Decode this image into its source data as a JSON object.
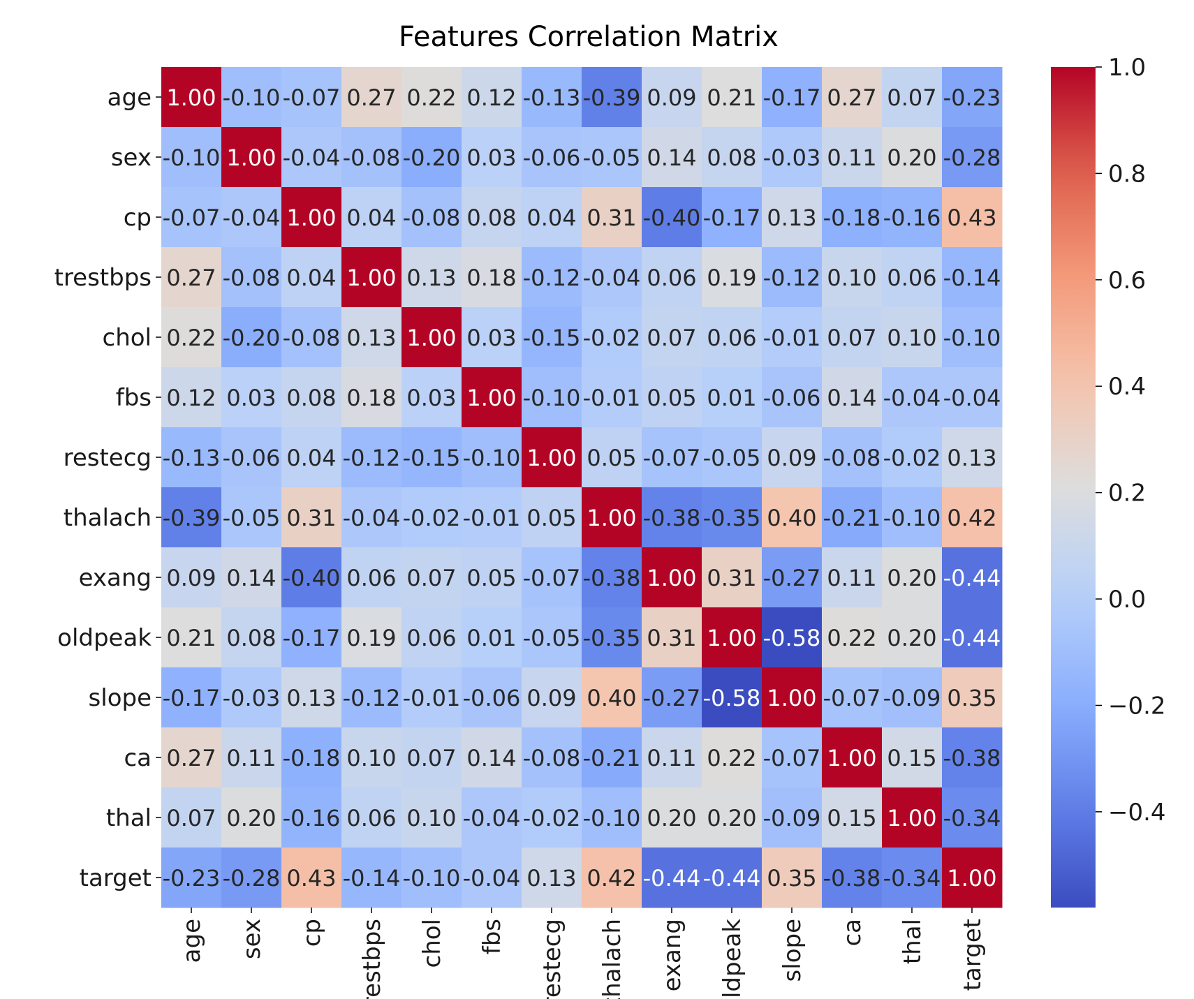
{
  "chart_data": {
    "type": "heatmap",
    "title": "Features Correlation Matrix",
    "xlabel": "",
    "ylabel": "",
    "colormap": "coolwarm",
    "vmin": -0.58,
    "vmax": 1.0,
    "annotation_format": "0.00",
    "labels": [
      "age",
      "sex",
      "cp",
      "trestbps",
      "chol",
      "fbs",
      "restecg",
      "thalach",
      "exang",
      "oldpeak",
      "slope",
      "ca",
      "thal",
      "target"
    ],
    "matrix": [
      [
        1.0,
        -0.1,
        -0.07,
        0.27,
        0.22,
        0.12,
        -0.13,
        -0.39,
        0.09,
        0.21,
        -0.17,
        0.27,
        0.07,
        -0.23
      ],
      [
        -0.1,
        1.0,
        -0.04,
        -0.08,
        -0.2,
        0.03,
        -0.06,
        -0.05,
        0.14,
        0.08,
        -0.03,
        0.11,
        0.2,
        -0.28
      ],
      [
        -0.07,
        -0.04,
        1.0,
        0.04,
        -0.08,
        0.08,
        0.04,
        0.31,
        -0.4,
        -0.17,
        0.13,
        -0.18,
        -0.16,
        0.43
      ],
      [
        0.27,
        -0.08,
        0.04,
        1.0,
        0.13,
        0.18,
        -0.12,
        -0.04,
        0.06,
        0.19,
        -0.12,
        0.1,
        0.06,
        -0.14
      ],
      [
        0.22,
        -0.2,
        -0.08,
        0.13,
        1.0,
        0.03,
        -0.15,
        -0.02,
        0.07,
        0.06,
        -0.01,
        0.07,
        0.1,
        -0.1
      ],
      [
        0.12,
        0.03,
        0.08,
        0.18,
        0.03,
        1.0,
        -0.1,
        -0.01,
        0.05,
        0.01,
        -0.06,
        0.14,
        -0.04,
        -0.04
      ],
      [
        -0.13,
        -0.06,
        0.04,
        -0.12,
        -0.15,
        -0.1,
        1.0,
        0.05,
        -0.07,
        -0.05,
        0.09,
        -0.08,
        -0.02,
        0.13
      ],
      [
        -0.39,
        -0.05,
        0.31,
        -0.04,
        -0.02,
        -0.01,
        0.05,
        1.0,
        -0.38,
        -0.35,
        0.4,
        -0.21,
        -0.1,
        0.42
      ],
      [
        0.09,
        0.14,
        -0.4,
        0.06,
        0.07,
        0.05,
        -0.07,
        -0.38,
        1.0,
        0.31,
        -0.27,
        0.11,
        0.2,
        -0.44
      ],
      [
        0.21,
        0.08,
        -0.17,
        0.19,
        0.06,
        0.01,
        -0.05,
        -0.35,
        0.31,
        1.0,
        -0.58,
        0.22,
        0.2,
        -0.44
      ],
      [
        -0.17,
        -0.03,
        0.13,
        -0.12,
        -0.01,
        -0.06,
        0.09,
        0.4,
        -0.27,
        -0.58,
        1.0,
        -0.07,
        -0.09,
        0.35
      ],
      [
        0.27,
        0.11,
        -0.18,
        0.1,
        0.07,
        0.14,
        -0.08,
        -0.21,
        0.11,
        0.22,
        -0.07,
        1.0,
        0.15,
        -0.38
      ],
      [
        0.07,
        0.2,
        -0.16,
        0.06,
        0.1,
        -0.04,
        -0.02,
        -0.1,
        0.2,
        0.2,
        -0.09,
        0.15,
        1.0,
        -0.34
      ],
      [
        -0.23,
        -0.28,
        0.43,
        -0.14,
        -0.1,
        -0.04,
        0.13,
        0.42,
        -0.44,
        -0.44,
        0.35,
        -0.38,
        -0.34,
        1.0
      ]
    ],
    "colorbar": {
      "ticks": [
        1.0,
        0.8,
        0.6,
        0.4,
        0.2,
        0.0,
        -0.2,
        -0.4
      ],
      "tick_labels": [
        "1.0",
        "0.8",
        "0.6",
        "0.4",
        "0.2",
        "0.0",
        "−0.2",
        "−0.4"
      ]
    }
  }
}
